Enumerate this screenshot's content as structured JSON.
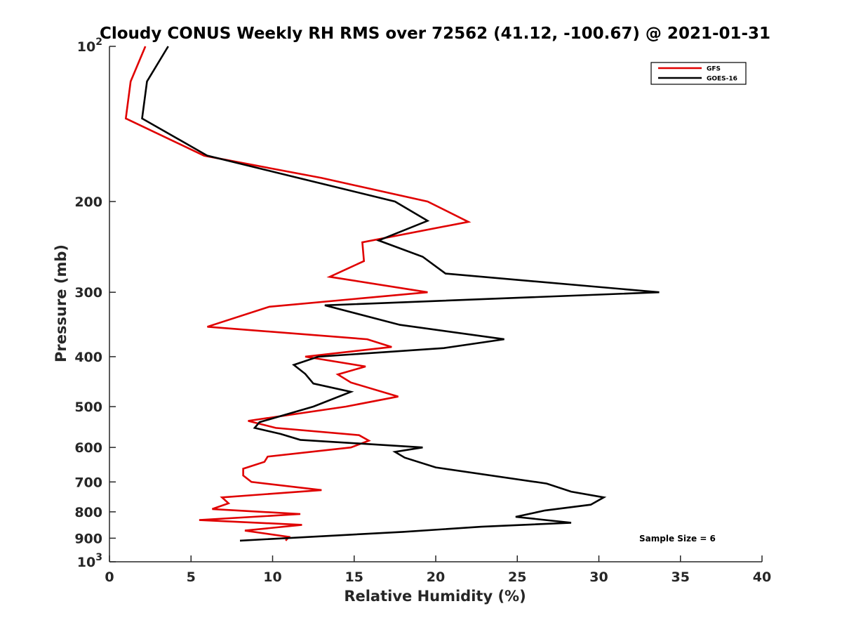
{
  "chart_data": {
    "type": "line",
    "title": "Cloudy CONUS Weekly RH RMS over 72562 (41.12, -100.67) @ 2021-01-31",
    "xlabel": "Relative Humidity (%)",
    "ylabel": "Pressure (mb)",
    "xlim": [
      0,
      40
    ],
    "ylim": [
      100,
      1000
    ],
    "y_scale": "log",
    "y_reversed": true,
    "x_ticks": [
      "0",
      "5",
      "10",
      "15",
      "20",
      "25",
      "30",
      "35",
      "40"
    ],
    "x_tick_values": [
      0,
      5,
      10,
      15,
      20,
      25,
      30,
      35,
      40
    ],
    "y_ticks": [
      {
        "value": 100,
        "base": "10",
        "exp": "2"
      },
      {
        "value": 200,
        "label": "200"
      },
      {
        "value": 300,
        "label": "300"
      },
      {
        "value": 400,
        "label": "400"
      },
      {
        "value": 500,
        "label": "500"
      },
      {
        "value": 600,
        "label": "600"
      },
      {
        "value": 700,
        "label": "700"
      },
      {
        "value": 800,
        "label": "800"
      },
      {
        "value": 900,
        "label": "900"
      },
      {
        "value": 1000,
        "base": "10",
        "exp": "3"
      }
    ],
    "legend_position": "top-right",
    "annotation": "Sample Size = 6",
    "series": [
      {
        "name": "GFS",
        "color": "#e00000",
        "points": [
          [
            2.2,
            100
          ],
          [
            1.3,
            117
          ],
          [
            1.0,
            138
          ],
          [
            5.8,
            163
          ],
          [
            13.0,
            180
          ],
          [
            19.5,
            200
          ],
          [
            22.0,
            219
          ],
          [
            15.5,
            240
          ],
          [
            15.6,
            261
          ],
          [
            13.5,
            280
          ],
          [
            19.5,
            300
          ],
          [
            9.8,
            320
          ],
          [
            6.0,
            350
          ],
          [
            15.8,
            370
          ],
          [
            17.3,
            383
          ],
          [
            12.0,
            400
          ],
          [
            15.7,
            418
          ],
          [
            14.0,
            433
          ],
          [
            14.8,
            449
          ],
          [
            17.7,
            478
          ],
          [
            14.5,
            500
          ],
          [
            8.5,
            533
          ],
          [
            10.2,
            550
          ],
          [
            15.3,
            568
          ],
          [
            15.9,
            582
          ],
          [
            14.8,
            600
          ],
          [
            9.7,
            625
          ],
          [
            9.5,
            640
          ],
          [
            8.2,
            660
          ],
          [
            8.2,
            680
          ],
          [
            8.7,
            700
          ],
          [
            13.0,
            726
          ],
          [
            6.9,
            750
          ],
          [
            7.3,
            770
          ],
          [
            6.3,
            790
          ],
          [
            11.7,
            808
          ],
          [
            5.5,
            830
          ],
          [
            11.8,
            848
          ],
          [
            8.3,
            870
          ],
          [
            11.0,
            895
          ],
          [
            10.8,
            910
          ]
        ]
      },
      {
        "name": "GOES-16",
        "color": "#000000",
        "points": [
          [
            3.6,
            100
          ],
          [
            2.3,
            117
          ],
          [
            2.0,
            138
          ],
          [
            6.0,
            163
          ],
          [
            17.5,
            200
          ],
          [
            19.5,
            218
          ],
          [
            16.5,
            238
          ],
          [
            19.2,
            256
          ],
          [
            20.6,
            276
          ],
          [
            33.7,
            300
          ],
          [
            13.2,
            318
          ],
          [
            17.8,
            347
          ],
          [
            24.2,
            370
          ],
          [
            20.5,
            385
          ],
          [
            12.8,
            400
          ],
          [
            11.3,
            415
          ],
          [
            12.0,
            432
          ],
          [
            12.5,
            451
          ],
          [
            14.8,
            468
          ],
          [
            12.5,
            500
          ],
          [
            9.2,
            536
          ],
          [
            8.9,
            550
          ],
          [
            10.5,
            565
          ],
          [
            11.7,
            580
          ],
          [
            19.2,
            600
          ],
          [
            17.5,
            612
          ],
          [
            18.1,
            628
          ],
          [
            20.0,
            656
          ],
          [
            26.8,
            705
          ],
          [
            28.3,
            731
          ],
          [
            30.3,
            750
          ],
          [
            29.5,
            775
          ],
          [
            26.7,
            795
          ],
          [
            24.9,
            818
          ],
          [
            28.3,
            840
          ],
          [
            22.8,
            855
          ],
          [
            18.0,
            875
          ],
          [
            8.0,
            910
          ]
        ]
      }
    ]
  }
}
